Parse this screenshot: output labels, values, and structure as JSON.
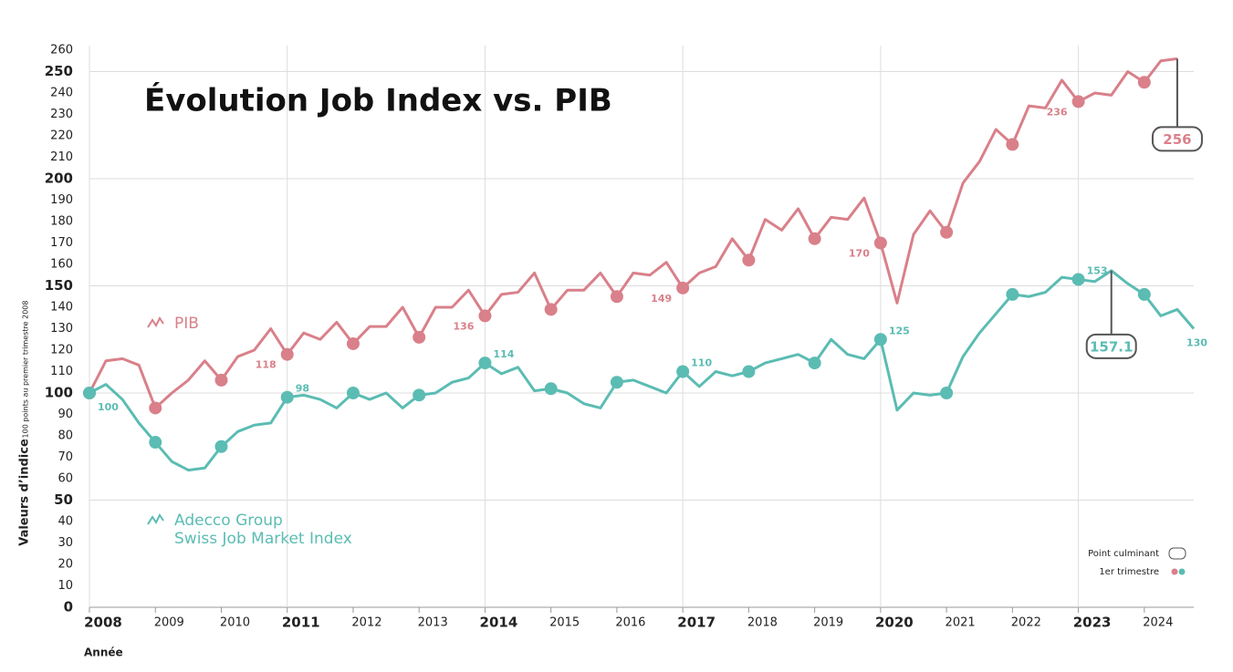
{
  "chart_data": {
    "type": "line",
    "title": "Évolution Job Index vs. PIB",
    "y_label": "Valeurs d’indice",
    "y_sublabel": "100 points au premier trimestre 2008",
    "x_label": "Année",
    "key": {
      "peak": "Point culminant",
      "quarter": "1er trimestre"
    },
    "x": [
      2008,
      2008.25,
      2008.5,
      2008.75,
      2009,
      2009.25,
      2009.5,
      2009.75,
      2010,
      2010.25,
      2010.5,
      2010.75,
      2011,
      2011.25,
      2011.5,
      2011.75,
      2012,
      2012.25,
      2012.5,
      2012.75,
      2013,
      2013.25,
      2013.5,
      2013.75,
      2014,
      2014.25,
      2014.5,
      2014.75,
      2015,
      2015.25,
      2015.5,
      2015.75,
      2016,
      2016.25,
      2016.5,
      2016.75,
      2017,
      2017.25,
      2017.5,
      2017.75,
      2018,
      2018.25,
      2018.5,
      2018.75,
      2019,
      2019.25,
      2019.5,
      2019.75,
      2020,
      2020.25,
      2020.5,
      2020.75,
      2021,
      2021.25,
      2021.5,
      2021.75,
      2022,
      2022.25,
      2022.5,
      2022.75,
      2023,
      2023.25,
      2023.5,
      2023.75,
      2024,
      2024.25,
      2024.5,
      2024.75
    ],
    "series": [
      {
        "name": "PIB",
        "color": "#d9808a",
        "values": [
          100,
          115,
          116,
          113,
          93,
          100,
          106,
          115,
          106,
          117,
          120,
          130,
          118,
          128,
          125,
          133,
          123,
          131,
          131,
          140,
          126,
          140,
          140,
          148,
          136,
          146,
          147,
          156,
          139,
          148,
          148,
          156,
          145,
          156,
          155,
          161,
          149,
          156,
          159,
          172,
          162,
          181,
          176,
          186,
          172,
          182,
          181,
          191,
          170,
          142,
          174,
          185,
          175,
          198,
          208,
          223,
          216,
          234,
          233,
          246,
          236,
          240,
          239,
          250,
          245,
          255,
          256,
          null
        ],
        "value_labels": [
          null,
          null,
          null,
          null,
          null,
          null,
          null,
          null,
          null,
          null,
          null,
          null,
          "118",
          null,
          null,
          null,
          null,
          null,
          null,
          null,
          null,
          null,
          null,
          null,
          "136",
          null,
          null,
          null,
          null,
          null,
          null,
          null,
          null,
          null,
          null,
          null,
          "149",
          null,
          null,
          null,
          null,
          null,
          null,
          null,
          null,
          null,
          null,
          null,
          "170",
          null,
          null,
          null,
          null,
          null,
          null,
          null,
          null,
          null,
          null,
          null,
          "236",
          null,
          null,
          null,
          null,
          null,
          "256",
          null
        ]
      },
      {
        "name": "Adecco Group\nSwiss Job Market Index",
        "color": "#5bbcb3",
        "values": [
          100,
          104,
          97,
          86,
          77,
          68,
          64,
          65,
          75,
          82,
          85,
          86,
          98,
          99,
          97,
          93,
          100,
          97,
          100,
          93,
          99,
          100,
          105,
          107,
          114,
          109,
          112,
          101,
          102,
          100,
          95,
          93,
          105,
          106,
          103,
          100,
          110,
          103,
          110,
          108,
          110,
          114,
          116,
          118,
          114,
          125,
          118,
          116,
          125,
          92,
          100,
          99,
          100,
          117,
          128,
          137,
          146,
          145,
          147,
          154,
          153,
          152,
          157.1,
          151,
          146,
          136,
          139,
          130
        ],
        "value_labels": [
          "100",
          null,
          null,
          null,
          null,
          null,
          null,
          null,
          null,
          null,
          null,
          null,
          "98",
          null,
          null,
          null,
          null,
          null,
          null,
          null,
          null,
          null,
          null,
          null,
          "114",
          null,
          null,
          null,
          null,
          null,
          null,
          null,
          null,
          null,
          null,
          null,
          "110",
          null,
          null,
          null,
          null,
          null,
          null,
          null,
          null,
          null,
          null,
          null,
          "125",
          null,
          null,
          null,
          null,
          null,
          null,
          null,
          null,
          null,
          null,
          null,
          "153",
          null,
          "157.1",
          null,
          null,
          null,
          null,
          "130"
        ]
      }
    ],
    "xlim": [
      2008,
      2024.75
    ],
    "xticks": [
      2008,
      2009,
      2010,
      2011,
      2012,
      2013,
      2014,
      2015,
      2016,
      2017,
      2018,
      2019,
      2020,
      2021,
      2022,
      2023,
      2024
    ],
    "ylim": [
      0,
      260
    ],
    "yticks": [
      0,
      10,
      20,
      30,
      40,
      50,
      60,
      70,
      80,
      90,
      100,
      110,
      120,
      130,
      140,
      150,
      160,
      170,
      180,
      190,
      200,
      210,
      220,
      230,
      240,
      250,
      260
    ],
    "grid": true
  }
}
